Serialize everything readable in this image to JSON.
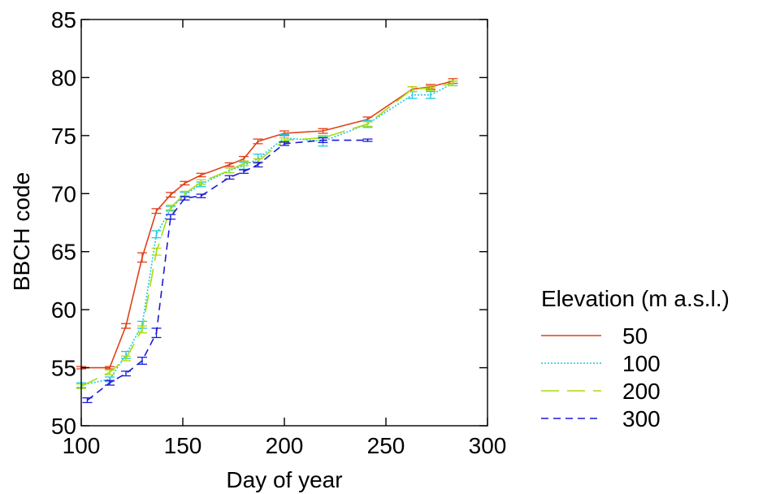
{
  "chart_data": {
    "type": "line",
    "title": "",
    "xlabel": "Day of year",
    "ylabel": "BBCH code",
    "xlim": [
      100,
      300
    ],
    "ylim": [
      50,
      85
    ],
    "xticks": [
      100,
      150,
      200,
      250,
      300
    ],
    "yticks": [
      50,
      55,
      60,
      65,
      70,
      75,
      80,
      85
    ],
    "legend": {
      "title": "Elevation (m a.s.l.)",
      "placement": "right"
    },
    "grid": false,
    "error_bars": true,
    "series": [
      {
        "name": "50",
        "color": "#e0401a",
        "dash": "solid",
        "points": [
          [
            100,
            55.0,
            0.1
          ],
          [
            114,
            55.0,
            0.1
          ],
          [
            122,
            58.6,
            0.2
          ],
          [
            130,
            64.5,
            0.4
          ],
          [
            137,
            68.5,
            0.2
          ],
          [
            144,
            69.9,
            0.2
          ],
          [
            151,
            70.9,
            0.15
          ],
          [
            159,
            71.6,
            0.15
          ],
          [
            173,
            72.5,
            0.15
          ],
          [
            180,
            73.0,
            0.2
          ],
          [
            187,
            74.5,
            0.2
          ],
          [
            200,
            75.2,
            0.2
          ],
          [
            219,
            75.4,
            0.2
          ],
          [
            241,
            76.4,
            0.2
          ],
          [
            263,
            79.0,
            0.2
          ],
          [
            272,
            79.2,
            0.2
          ],
          [
            283,
            79.7,
            0.2
          ]
        ]
      },
      {
        "name": "100",
        "color": "#1ec8e0",
        "dash": "dotted",
        "points": [
          [
            100,
            53.5,
            0.2
          ],
          [
            114,
            54.0,
            0.2
          ],
          [
            122,
            56.1,
            0.3
          ],
          [
            130,
            58.7,
            0.3
          ],
          [
            137,
            66.5,
            0.3
          ],
          [
            144,
            68.7,
            0.2
          ],
          [
            151,
            69.9,
            0.2
          ],
          [
            159,
            70.8,
            0.2
          ],
          [
            173,
            72.0,
            0.2
          ],
          [
            180,
            72.4,
            0.3
          ],
          [
            187,
            73.0,
            0.4
          ],
          [
            200,
            74.8,
            0.3
          ],
          [
            219,
            74.5,
            0.4
          ],
          [
            241,
            76.0,
            0.3
          ],
          [
            263,
            78.5,
            0.3
          ],
          [
            272,
            78.5,
            0.3
          ],
          [
            283,
            79.5,
            0.2
          ]
        ]
      },
      {
        "name": "200",
        "color": "#a8dc10",
        "dash": "long-dash",
        "points": [
          [
            100,
            53.4,
            0.2
          ],
          [
            114,
            54.6,
            0.2
          ],
          [
            122,
            55.8,
            0.2
          ],
          [
            130,
            58.3,
            0.3
          ],
          [
            137,
            65.0,
            0.3
          ],
          [
            144,
            68.8,
            0.2
          ],
          [
            151,
            70.0,
            0.2
          ],
          [
            159,
            71.0,
            0.2
          ],
          [
            173,
            72.0,
            0.2
          ],
          [
            180,
            72.6,
            0.2
          ],
          [
            187,
            72.8,
            0.2
          ],
          [
            200,
            74.6,
            0.2
          ],
          [
            219,
            74.8,
            0.2
          ],
          [
            241,
            76.0,
            0.2
          ],
          [
            263,
            79.0,
            0.2
          ],
          [
            272,
            79.1,
            0.2
          ],
          [
            283,
            79.5,
            0.2
          ]
        ]
      },
      {
        "name": "300",
        "color": "#1a1ad8",
        "dash": "dashed",
        "points": [
          [
            103,
            52.2,
            0.2
          ],
          [
            114,
            53.7,
            0.2
          ],
          [
            122,
            54.5,
            0.2
          ],
          [
            130,
            55.6,
            0.3
          ],
          [
            137,
            58.0,
            0.4
          ],
          [
            144,
            68.0,
            0.2
          ],
          [
            151,
            69.6,
            0.15
          ],
          [
            159,
            69.8,
            0.15
          ],
          [
            173,
            71.4,
            0.15
          ],
          [
            180,
            71.9,
            0.15
          ],
          [
            187,
            72.5,
            0.2
          ],
          [
            200,
            74.3,
            0.15
          ],
          [
            219,
            74.6,
            0.2
          ],
          [
            241,
            74.6,
            0.1
          ]
        ]
      }
    ]
  }
}
